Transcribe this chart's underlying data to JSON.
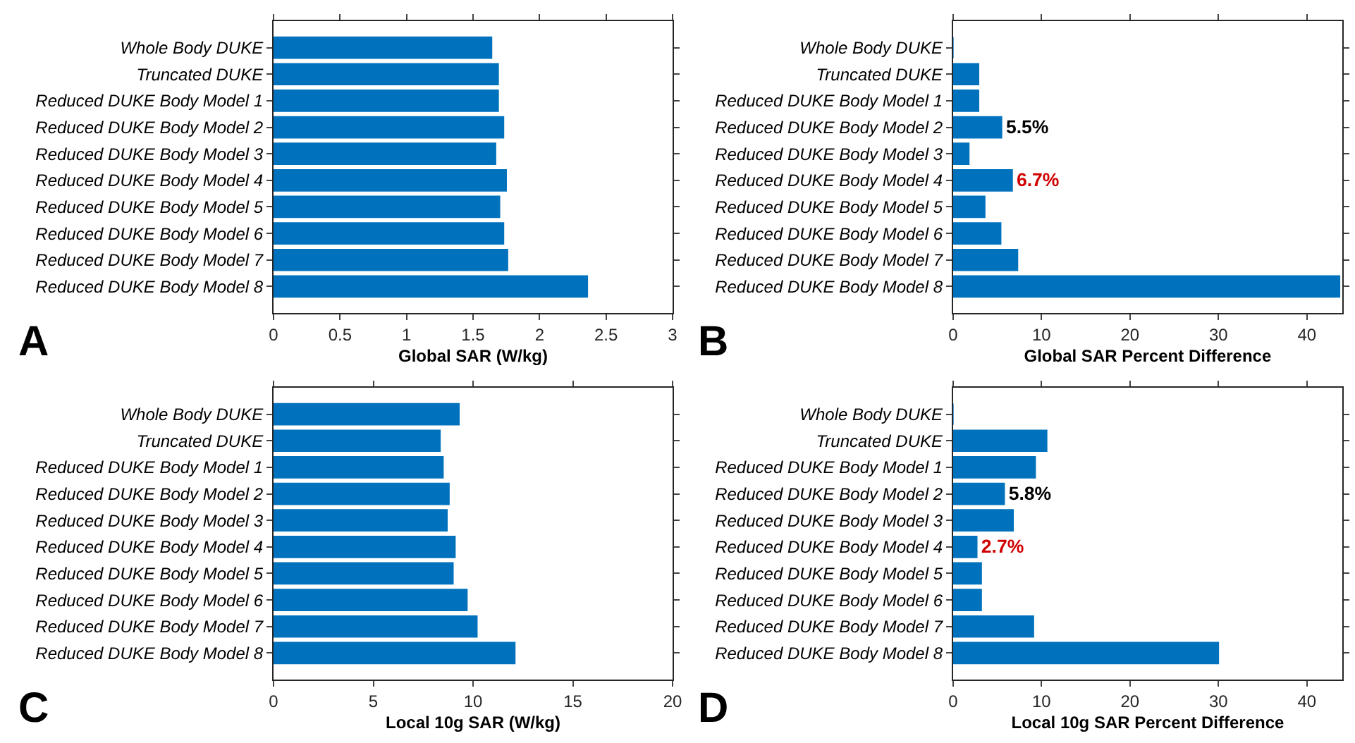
{
  "chart_data": [
    {
      "type": "bar",
      "orientation": "horizontal",
      "categories": [
        "Whole Body DUKE",
        "Truncated DUKE",
        "Reduced DUKE Body Model 1",
        "Reduced DUKE Body Model 2",
        "Reduced DUKE Body Model 3",
        "Reduced DUKE Body Model 4",
        "Reduced DUKE Body Model 5",
        "Reduced DUKE Body Model 6",
        "Reduced DUKE Body Model 7",
        "Reduced DUKE Body Model 8"
      ],
      "values": [
        1.64,
        1.69,
        1.69,
        1.73,
        1.67,
        1.75,
        1.7,
        1.73,
        1.76,
        2.36
      ],
      "color": "#0072bd",
      "xlim": [
        0,
        3
      ],
      "xticks": [
        0,
        0.5,
        1,
        1.5,
        2,
        2.5,
        3
      ],
      "xlabel": "Global SAR (W/kg)",
      "annotations": [
        "A"
      ]
    },
    {
      "type": "bar",
      "orientation": "horizontal",
      "categories": [
        "Whole Body DUKE",
        "Truncated DUKE",
        "Reduced DUKE Body Model 1",
        "Reduced DUKE Body Model 2",
        "Reduced DUKE Body Model 3",
        "Reduced DUKE Body Model 4",
        "Reduced DUKE Body Model 5",
        "Reduced DUKE Body Model 6",
        "Reduced DUKE Body Model 7",
        "Reduced DUKE Body Model 8"
      ],
      "values": [
        0,
        2.9,
        2.9,
        5.5,
        1.8,
        6.7,
        3.6,
        5.4,
        7.3,
        43.7
      ],
      "value_labels": [
        null,
        null,
        null,
        "5.5%",
        null,
        "6.7%",
        null,
        null,
        null,
        null
      ],
      "color": "#0072bd",
      "xlim": [
        0,
        44
      ],
      "xticks": [
        0,
        10,
        20,
        30,
        40
      ],
      "xlabel": "Global SAR Percent Difference",
      "annotations": [
        "B"
      ]
    },
    {
      "type": "bar",
      "orientation": "horizontal",
      "categories": [
        "Whole Body DUKE",
        "Truncated DUKE",
        "Reduced DUKE Body Model 1",
        "Reduced DUKE Body Model 2",
        "Reduced DUKE Body Model 3",
        "Reduced DUKE Body Model 4",
        "Reduced DUKE Body Model 5",
        "Reduced DUKE Body Model 6",
        "Reduced DUKE Body Model 7",
        "Reduced DUKE Body Model 8"
      ],
      "values": [
        9.3,
        8.35,
        8.5,
        8.8,
        8.7,
        9.1,
        9.0,
        9.7,
        10.2,
        12.1
      ],
      "color": "#0072bd",
      "xlim": [
        0,
        20
      ],
      "xticks": [
        0,
        5,
        10,
        15,
        20
      ],
      "xlabel": "Local 10g SAR (W/kg)",
      "annotations": [
        "C"
      ]
    },
    {
      "type": "bar",
      "orientation": "horizontal",
      "categories": [
        "Whole Body DUKE",
        "Truncated DUKE",
        "Reduced DUKE Body Model 1",
        "Reduced DUKE Body Model 2",
        "Reduced DUKE Body Model 3",
        "Reduced DUKE Body Model 4",
        "Reduced DUKE Body Model 5",
        "Reduced DUKE Body Model 6",
        "Reduced DUKE Body Model 7",
        "Reduced DUKE Body Model 8"
      ],
      "values": [
        0,
        10.6,
        9.3,
        5.8,
        6.8,
        2.7,
        3.2,
        3.2,
        9.1,
        30.0
      ],
      "value_labels": [
        null,
        null,
        null,
        "5.8%",
        null,
        "2.7%",
        null,
        null,
        null,
        null
      ],
      "color": "#0072bd",
      "xlim": [
        0,
        44
      ],
      "xticks": [
        0,
        10,
        20,
        30,
        40
      ],
      "xlabel": "Local 10g SAR Percent Difference",
      "annotations": [
        "D"
      ]
    }
  ]
}
